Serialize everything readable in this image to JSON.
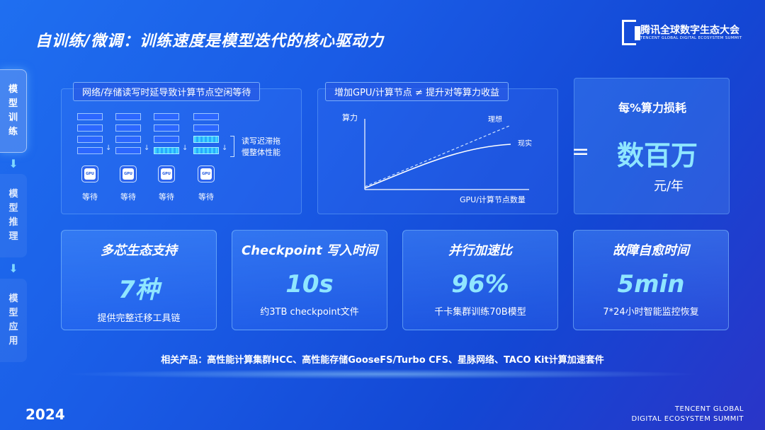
{
  "header": {
    "title": "自训练/微调：训练速度是模型迭代的核心驱动力",
    "logo_cn": "腾讯全球数字生态大会",
    "logo_en": "TENCENT GLOBAL DIGITAL ECOSYSTEM SUMMIT"
  },
  "sidenav": {
    "items": [
      {
        "label": [
          "模",
          "型",
          "训",
          "练"
        ]
      },
      {
        "label": [
          "模",
          "型",
          "推",
          "理"
        ]
      },
      {
        "label": [
          "模",
          "型",
          "应",
          "用"
        ]
      }
    ]
  },
  "panel_io": {
    "tag": "网络/存储读写时延导致计算节点空闲等待",
    "gpu_label": "GPU",
    "wait_labels": [
      "等待",
      "等待",
      "等待",
      "等待"
    ],
    "note_line1": "读写迟滞拖",
    "note_line2": "慢整体性能"
  },
  "panel_chart": {
    "tag": "增加GPU/计算节点 ≠ 提升对等算力收益",
    "chart_data": {
      "type": "line",
      "ylabel": "算力",
      "xlabel": "GPU/计算节点数量",
      "series": [
        {
          "name": "理想",
          "style": "dashed"
        },
        {
          "name": "现实",
          "style": "solid"
        }
      ],
      "grid": false
    }
  },
  "panel_cost": {
    "caption": "每%算力损耗",
    "equals": "=",
    "value": "数百万",
    "unit": "元/年"
  },
  "stats": [
    {
      "title": "多芯生态支持",
      "value": "7种",
      "desc": "提供完整迁移工具链"
    },
    {
      "title": "Checkpoint 写入时间",
      "value": "10s",
      "desc": "约3TB  checkpoint文件"
    },
    {
      "title": "并行加速比",
      "value": "96%",
      "desc": "千卡集群训练70B模型"
    },
    {
      "title": "故障自愈时间",
      "value": "5min",
      "desc": "7*24小时智能监控恢复"
    }
  ],
  "footer": {
    "products": "相关产品：高性能计算集群HCC、高性能存储GooseFS/Turbo  CFS、星脉网络、TACO  Kit计算加速套件",
    "year": "2024",
    "summit_line1": "TENCENT GLOBAL",
    "summit_line2": "DIGITAL ECOSYSTEM SUMMIT"
  },
  "colors": {
    "accent": "#8fe6ff",
    "background": "#1a5ce6"
  }
}
